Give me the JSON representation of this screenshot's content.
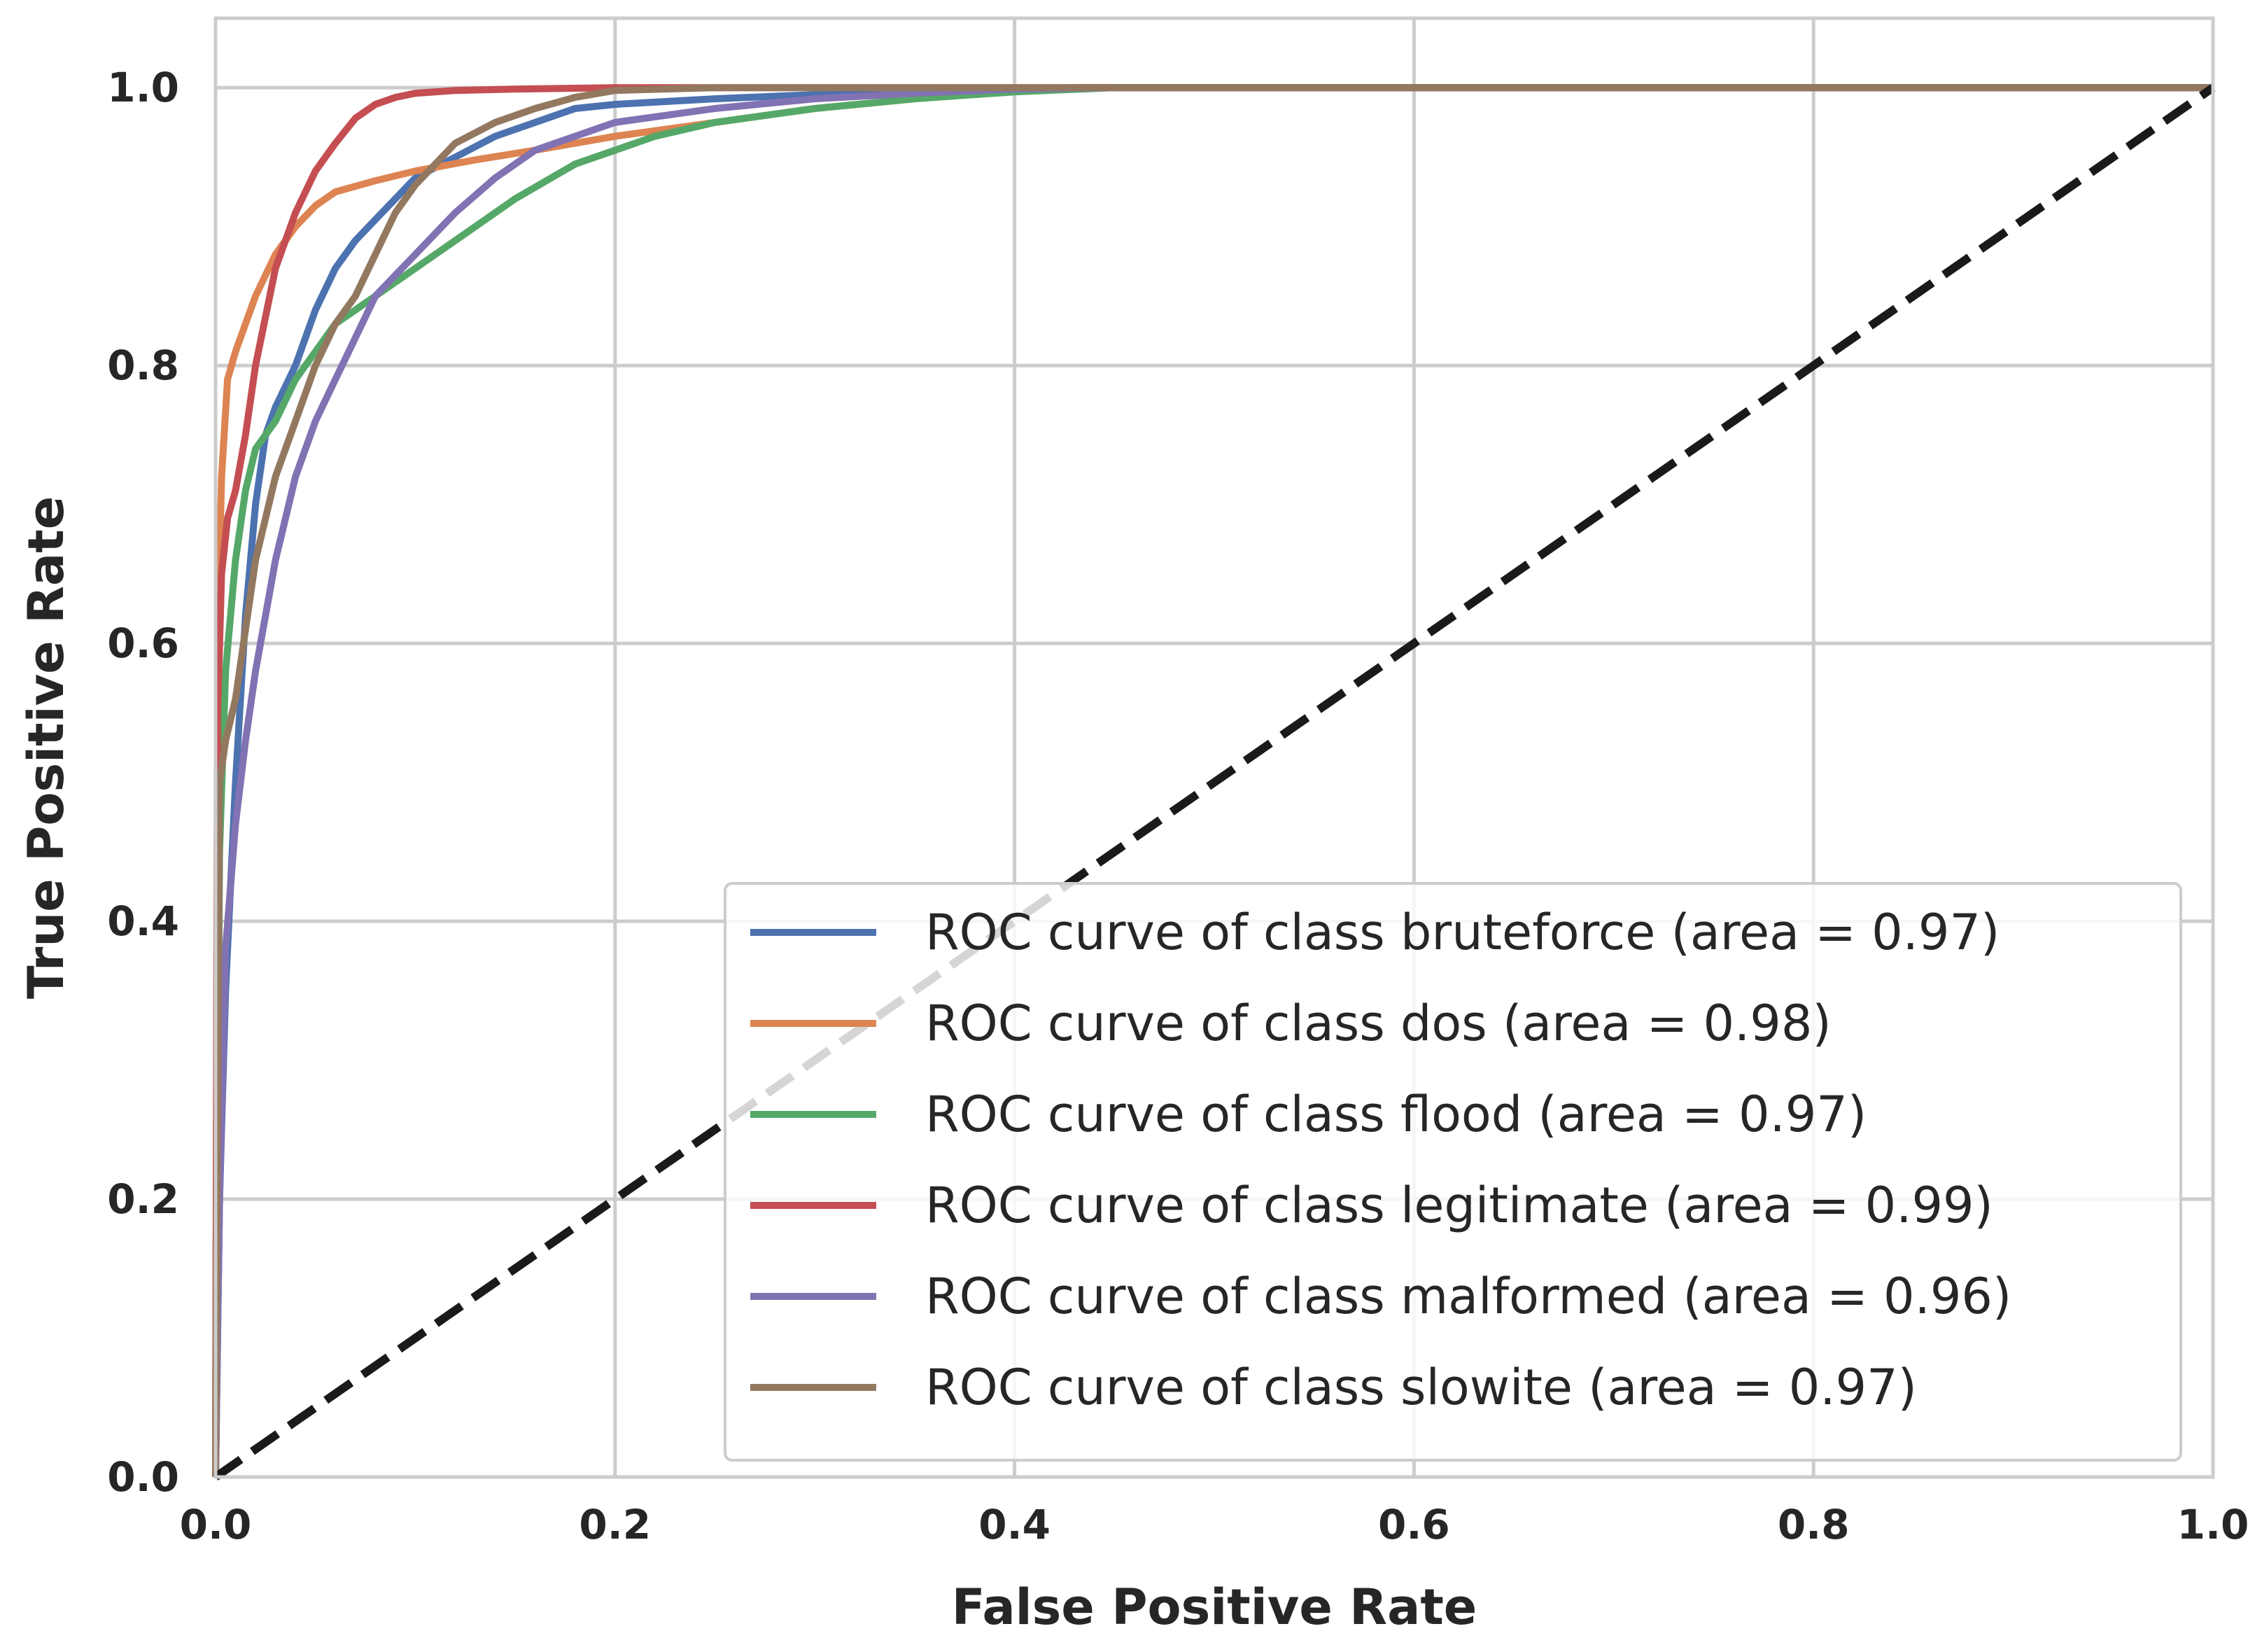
{
  "chart_data": {
    "type": "line",
    "title": "",
    "xlabel": "False Positive Rate",
    "ylabel": "True Positive Rate",
    "xlim": [
      0.0,
      1.0
    ],
    "ylim": [
      0.0,
      1.05
    ],
    "xticks": [
      "0.0",
      "0.2",
      "0.4",
      "0.6",
      "0.8",
      "1.0"
    ],
    "yticks": [
      "0.0",
      "0.2",
      "0.4",
      "0.6",
      "0.8",
      "1.0"
    ],
    "grid": true,
    "legend_position": "lower-right",
    "series": [
      {
        "name": "ROC curve of class bruteforce (area = 0.97)",
        "color": "#4c72b0",
        "x": [
          0,
          0.002,
          0.005,
          0.01,
          0.015,
          0.02,
          0.025,
          0.03,
          0.04,
          0.05,
          0.06,
          0.07,
          0.08,
          0.09,
          0.1,
          0.12,
          0.14,
          0.16,
          0.18,
          0.2,
          0.25,
          0.3,
          0.4,
          0.45,
          1.0
        ],
        "y": [
          0,
          0.2,
          0.35,
          0.5,
          0.62,
          0.7,
          0.75,
          0.77,
          0.8,
          0.84,
          0.87,
          0.89,
          0.905,
          0.92,
          0.935,
          0.95,
          0.965,
          0.975,
          0.985,
          0.988,
          0.992,
          0.995,
          0.999,
          1.0,
          1.0
        ]
      },
      {
        "name": "ROC curve of class dos (area = 0.98)",
        "color": "#dd8452",
        "x": [
          0,
          0.001,
          0.003,
          0.006,
          0.01,
          0.015,
          0.02,
          0.03,
          0.04,
          0.05,
          0.06,
          0.08,
          0.1,
          0.13,
          0.16,
          0.2,
          0.25,
          0.3,
          0.35,
          0.4,
          0.43,
          1.0
        ],
        "y": [
          0,
          0.6,
          0.72,
          0.79,
          0.81,
          0.83,
          0.85,
          0.88,
          0.9,
          0.915,
          0.925,
          0.933,
          0.94,
          0.948,
          0.955,
          0.965,
          0.975,
          0.985,
          0.992,
          0.998,
          1.0,
          1.0
        ]
      },
      {
        "name": "ROC curve of class flood (area = 0.97)",
        "color": "#55a868",
        "x": [
          0,
          0.002,
          0.005,
          0.01,
          0.015,
          0.02,
          0.03,
          0.04,
          0.05,
          0.06,
          0.08,
          0.1,
          0.12,
          0.15,
          0.18,
          0.2,
          0.22,
          0.25,
          0.3,
          0.35,
          0.4,
          0.45,
          1.0
        ],
        "y": [
          0,
          0.45,
          0.58,
          0.66,
          0.71,
          0.74,
          0.76,
          0.79,
          0.81,
          0.83,
          0.85,
          0.87,
          0.89,
          0.92,
          0.945,
          0.955,
          0.965,
          0.975,
          0.985,
          0.992,
          0.997,
          1.0,
          1.0
        ]
      },
      {
        "name": "ROC curve of class legitimate (area = 0.99)",
        "color": "#c44e52",
        "x": [
          0,
          0.001,
          0.003,
          0.006,
          0.01,
          0.015,
          0.02,
          0.03,
          0.04,
          0.05,
          0.06,
          0.07,
          0.08,
          0.09,
          0.1,
          0.12,
          0.15,
          0.2,
          1.0
        ],
        "y": [
          0,
          0.55,
          0.65,
          0.69,
          0.71,
          0.75,
          0.8,
          0.87,
          0.91,
          0.94,
          0.96,
          0.978,
          0.988,
          0.993,
          0.996,
          0.998,
          0.999,
          1.0,
          1.0
        ]
      },
      {
        "name": "ROC curve of class malformed (area = 0.96)",
        "color": "#8172b3",
        "x": [
          0,
          0.002,
          0.005,
          0.01,
          0.015,
          0.02,
          0.03,
          0.04,
          0.05,
          0.06,
          0.07,
          0.08,
          0.1,
          0.12,
          0.14,
          0.16,
          0.18,
          0.2,
          0.25,
          0.3,
          0.35,
          0.4,
          0.45,
          1.0
        ],
        "y": [
          0,
          0.2,
          0.38,
          0.47,
          0.53,
          0.58,
          0.66,
          0.72,
          0.76,
          0.79,
          0.82,
          0.85,
          0.88,
          0.91,
          0.935,
          0.955,
          0.965,
          0.975,
          0.985,
          0.992,
          0.996,
          0.999,
          1.0,
          1.0
        ]
      },
      {
        "name": "ROC curve of class slowite (area = 0.97)",
        "color": "#937860",
        "x": [
          0,
          0.002,
          0.005,
          0.01,
          0.015,
          0.02,
          0.03,
          0.04,
          0.05,
          0.06,
          0.07,
          0.08,
          0.09,
          0.1,
          0.11,
          0.12,
          0.14,
          0.16,
          0.18,
          0.2,
          0.25,
          1.0
        ],
        "y": [
          0,
          0.5,
          0.53,
          0.56,
          0.61,
          0.66,
          0.72,
          0.76,
          0.8,
          0.83,
          0.85,
          0.88,
          0.91,
          0.93,
          0.945,
          0.96,
          0.975,
          0.985,
          0.993,
          0.998,
          1.0,
          1.0
        ]
      },
      {
        "name": "",
        "color": "#1a1a1a",
        "dashed": true,
        "x": [
          0,
          1
        ],
        "y": [
          0,
          1
        ]
      }
    ]
  }
}
